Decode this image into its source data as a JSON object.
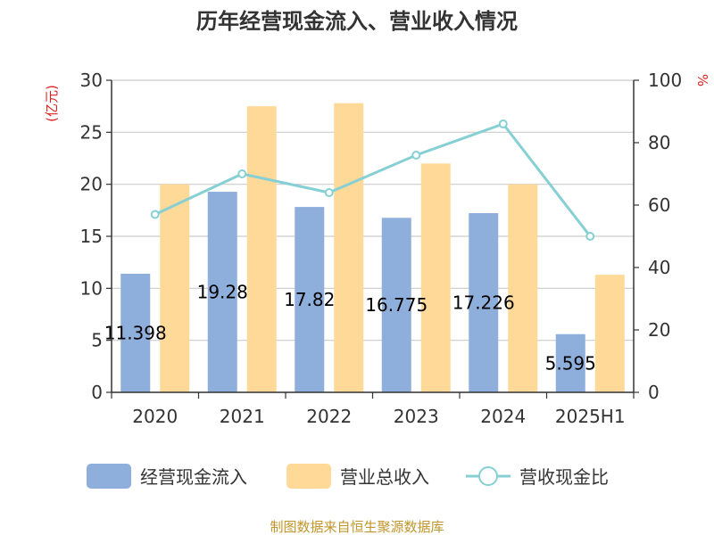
{
  "chart_data": {
    "type": "bar",
    "title": "历年经营现金流入、营业收入情况",
    "categories": [
      "2020",
      "2021",
      "2022",
      "2023",
      "2024",
      "2025H1"
    ],
    "series": [
      {
        "name": "经营现金流入",
        "kind": "bar",
        "axis": "left",
        "color": "#8eafdb",
        "values": [
          11.398,
          19.28,
          17.82,
          16.775,
          17.226,
          5.595
        ],
        "labels": [
          "11.398",
          "19.28",
          "17.82",
          "16.775",
          "17.226",
          "5.595"
        ]
      },
      {
        "name": "营业总收入",
        "kind": "bar",
        "axis": "left",
        "color": "#ffd998",
        "values": [
          20.0,
          27.5,
          27.8,
          22.0,
          20.0,
          11.3
        ]
      },
      {
        "name": "营收现金比",
        "kind": "line",
        "axis": "right",
        "color": "#86d0d4",
        "values": [
          57,
          70,
          64,
          76,
          86,
          50
        ]
      }
    ],
    "y_left": {
      "label": "(亿元)",
      "min": 0,
      "max": 30,
      "ticks": [
        "0",
        "5",
        "10",
        "15",
        "20",
        "25",
        "30"
      ]
    },
    "y_right": {
      "label": "%",
      "min": 0,
      "max": 100,
      "ticks": [
        "0",
        "20",
        "40",
        "60",
        "80",
        "100"
      ]
    },
    "grid": true,
    "legend_position": "bottom",
    "source": "制图数据来自恒生聚源数据库"
  }
}
